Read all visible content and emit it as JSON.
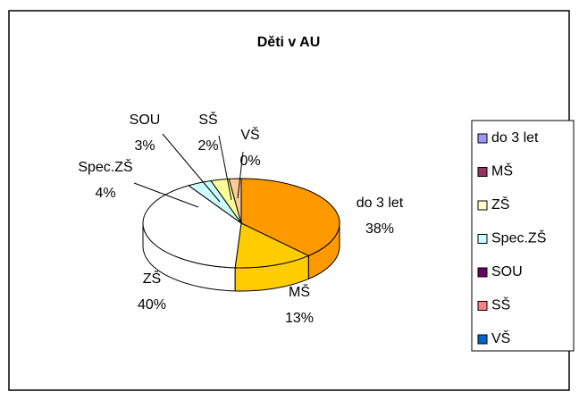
{
  "chart_data": {
    "type": "pie",
    "title": "Děti v AU",
    "categories": [
      "do 3 let",
      "MŠ",
      "ZŠ",
      "Spec.ZŠ",
      "SOU",
      "SŠ",
      "VŠ"
    ],
    "values": [
      38,
      13,
      40,
      4,
      3,
      2,
      0
    ],
    "value_labels": [
      "38%",
      "13%",
      "40%",
      "4%",
      "3%",
      "2%",
      "0%"
    ],
    "colors": [
      "#ff9900",
      "#ffcc00",
      "#ffffff",
      "#ccffff",
      "#ffff99",
      "#ffcc99",
      "#ff99cc"
    ],
    "legend_colors": [
      "#9999ff",
      "#993366",
      "#ffffcc",
      "#ccffff",
      "#660066",
      "#ff8080",
      "#0066cc"
    ],
    "legend": "right"
  }
}
